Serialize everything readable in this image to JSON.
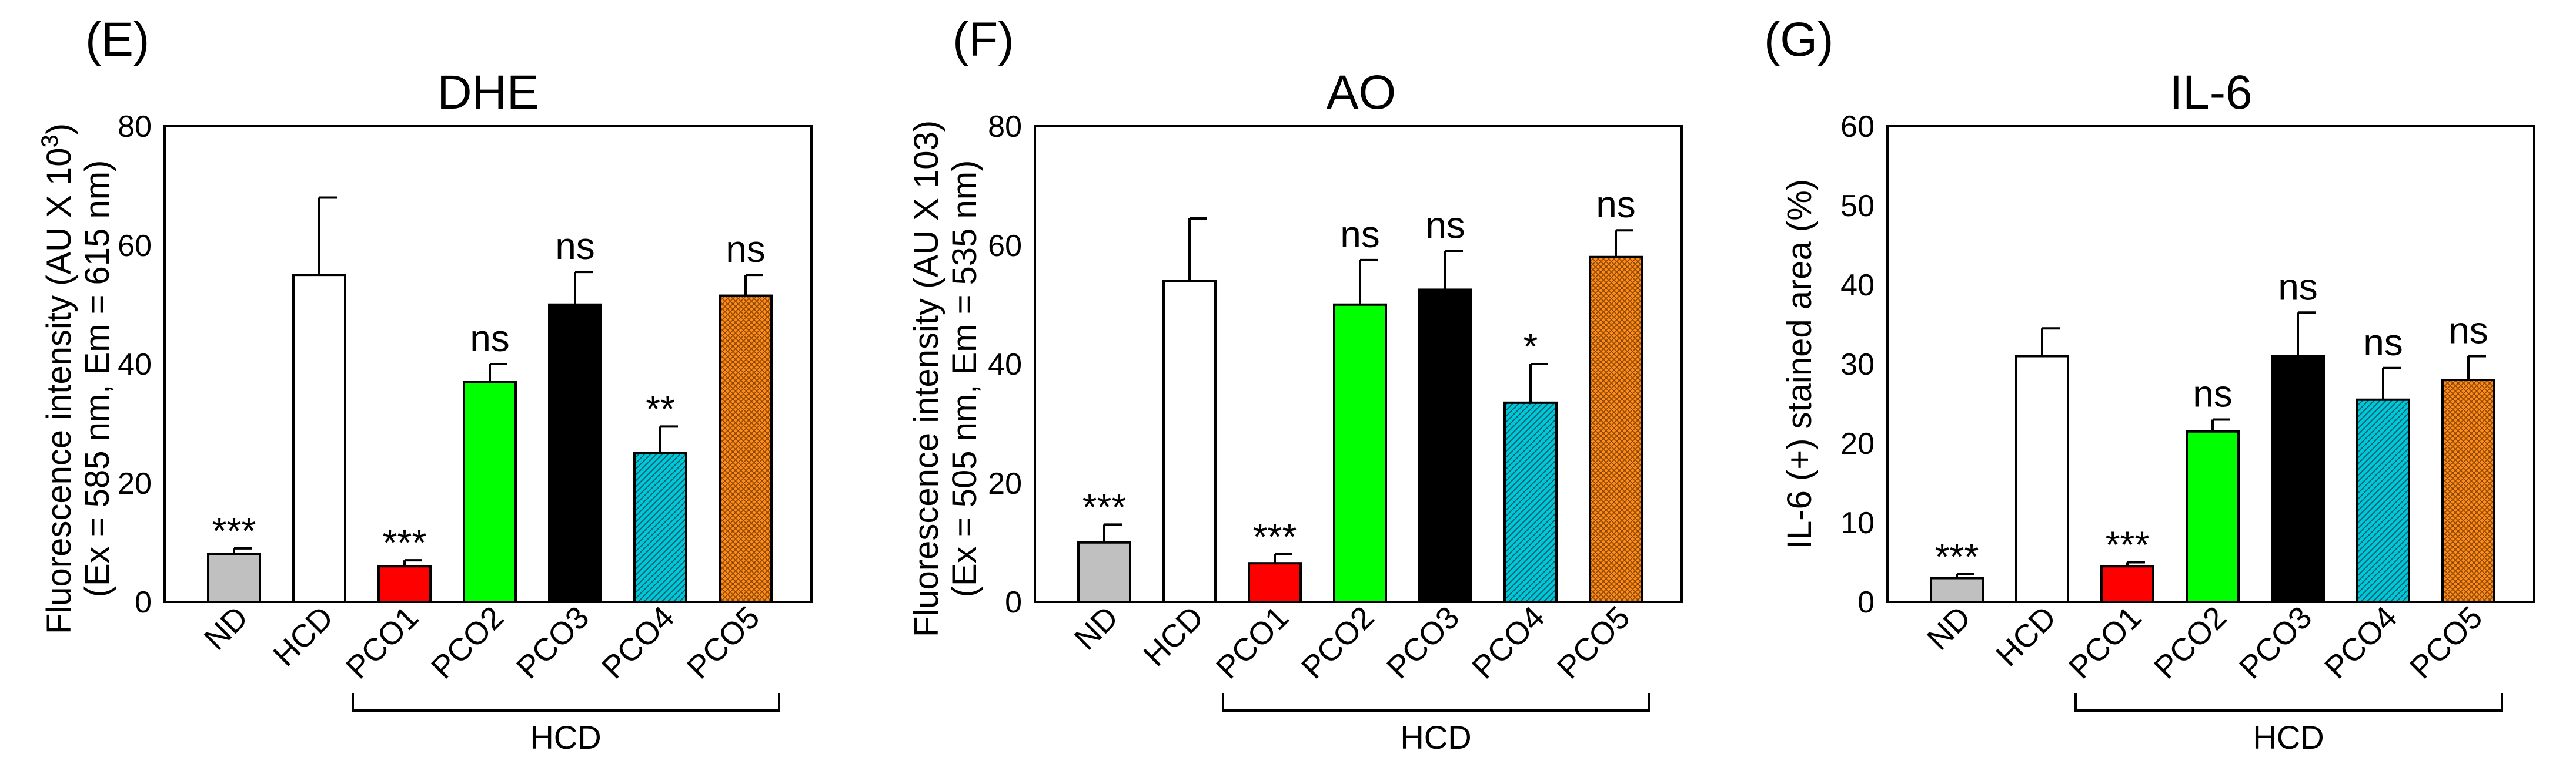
{
  "chart_data": [
    {
      "type": "bar",
      "panel": "(E)",
      "title": "DHE",
      "ylabel_line1_prefix": "Fluorescence intensity (AU X 10",
      "ylabel_line1_sup": "3",
      "ylabel_line1_suffix": ")",
      "ylabel_line2": "(Ex = 585 nm, Em = 615 nm)",
      "ylim": [
        0,
        80
      ],
      "yticks": [
        "0",
        "20",
        "40",
        "60",
        "80"
      ],
      "categories": [
        "ND",
        "HCD",
        "PCO1",
        "PCO2",
        "PCO3",
        "PCO4",
        "PCO5"
      ],
      "values": [
        8,
        55,
        6,
        37,
        50,
        25,
        51.5
      ],
      "errors": [
        1,
        13,
        1,
        3,
        5.5,
        4.5,
        3.5
      ],
      "significance": [
        "***",
        "",
        "***",
        "ns",
        "ns",
        "**",
        "ns"
      ],
      "group_label": "HCD"
    },
    {
      "type": "bar",
      "panel": "(F)",
      "title": "AO",
      "ylabel_line1": "Fluorescence intensity (AU X 103)",
      "ylabel_line2": "(Ex = 505 nm, Em = 535 nm)",
      "ylim": [
        0,
        80
      ],
      "yticks": [
        "0",
        "20",
        "40",
        "60",
        "80"
      ],
      "categories": [
        "ND",
        "HCD",
        "PCO1",
        "PCO2",
        "PCO3",
        "PCO4",
        "PCO5"
      ],
      "values": [
        10,
        54,
        6.5,
        50,
        52.5,
        33.5,
        58
      ],
      "errors": [
        3,
        10.5,
        1.5,
        7.5,
        6.5,
        6.5,
        4.5
      ],
      "significance": [
        "***",
        "",
        "***",
        "ns",
        "ns",
        "*",
        "ns"
      ],
      "group_label": "HCD"
    },
    {
      "type": "bar",
      "panel": "(G)",
      "title": "IL-6",
      "ylabel_line1": "IL-6 (+) stained area (%)",
      "ylim": [
        0,
        60
      ],
      "yticks": [
        "0",
        "10",
        "20",
        "30",
        "40",
        "50",
        "60"
      ],
      "categories": [
        "ND",
        "HCD",
        "PCO1",
        "PCO2",
        "PCO3",
        "PCO4",
        "PCO5"
      ],
      "values": [
        3,
        31,
        4.5,
        21.5,
        31,
        25.5,
        28
      ],
      "errors": [
        0.5,
        3.5,
        0.5,
        1.5,
        5.5,
        4,
        3
      ],
      "significance": [
        "***",
        "",
        "***",
        "ns",
        "ns",
        "ns",
        "ns"
      ],
      "group_label": "HCD"
    }
  ],
  "bar_styles": [
    {
      "fill": "#c0c0c0",
      "pattern": "none"
    },
    {
      "fill": "#ffffff",
      "pattern": "none"
    },
    {
      "fill": "#ff0000",
      "pattern": "none"
    },
    {
      "fill": "#00ff00",
      "pattern": "none"
    },
    {
      "fill": "#000000",
      "pattern": "none"
    },
    {
      "fill": "#00c8d6",
      "pattern": "diagonal-hatch"
    },
    {
      "fill": "#ff8c1a",
      "pattern": "crosshatch"
    }
  ]
}
